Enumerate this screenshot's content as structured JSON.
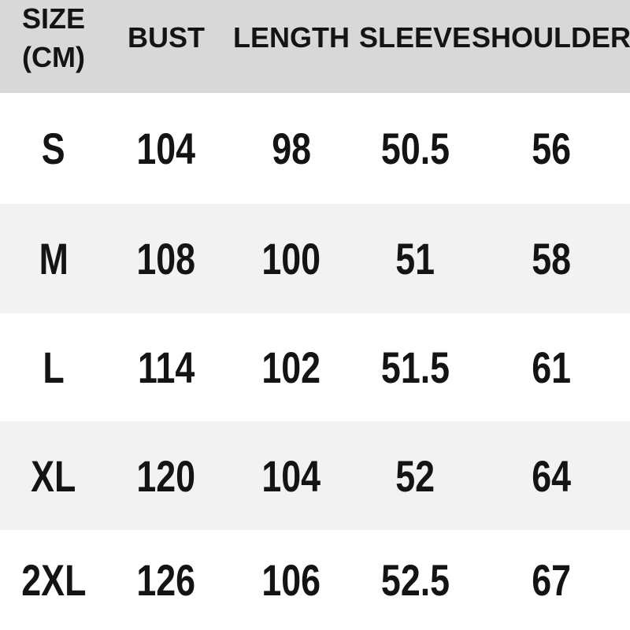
{
  "colors": {
    "header_bg": "#d8d8d8",
    "row_alt_bg": "#f2f2f2",
    "row_bg": "#ffffff",
    "text": "#141414"
  },
  "table": {
    "header": {
      "size_label_line1": "SIZE",
      "size_label_line2": "(CM)",
      "columns": [
        "BUST",
        "LENGTH",
        "SLEEVE",
        "SHOULDER"
      ]
    },
    "rows": [
      {
        "size": "S",
        "bust": "104",
        "length": "98",
        "sleeve": "50.5",
        "shoulder": "56"
      },
      {
        "size": "M",
        "bust": "108",
        "length": "100",
        "sleeve": "51",
        "shoulder": "58"
      },
      {
        "size": "L",
        "bust": "114",
        "length": "102",
        "sleeve": "51.5",
        "shoulder": "61"
      },
      {
        "size": "XL",
        "bust": "120",
        "length": "104",
        "sleeve": "52",
        "shoulder": "64"
      },
      {
        "size": "2XL",
        "bust": "126",
        "length": "106",
        "sleeve": "52.5",
        "shoulder": "67"
      }
    ]
  },
  "chart_data": {
    "type": "table",
    "title": "SIZE (CM)",
    "columns": [
      "SIZE (CM)",
      "BUST",
      "LENGTH",
      "SLEEVE",
      "SHOULDER"
    ],
    "rows": [
      [
        "S",
        104,
        98,
        50.5,
        56
      ],
      [
        "M",
        108,
        100,
        51,
        58
      ],
      [
        "L",
        114,
        102,
        51.5,
        61
      ],
      [
        "XL",
        120,
        104,
        52,
        64
      ],
      [
        "2XL",
        126,
        106,
        52.5,
        67
      ]
    ],
    "layout_hints": {
      "header_background": "#d8d8d8",
      "zebra_stripe_background": "#f2f2f2",
      "stripe_rows": [
        "M",
        "XL"
      ],
      "units": "cm",
      "grid": false
    }
  }
}
